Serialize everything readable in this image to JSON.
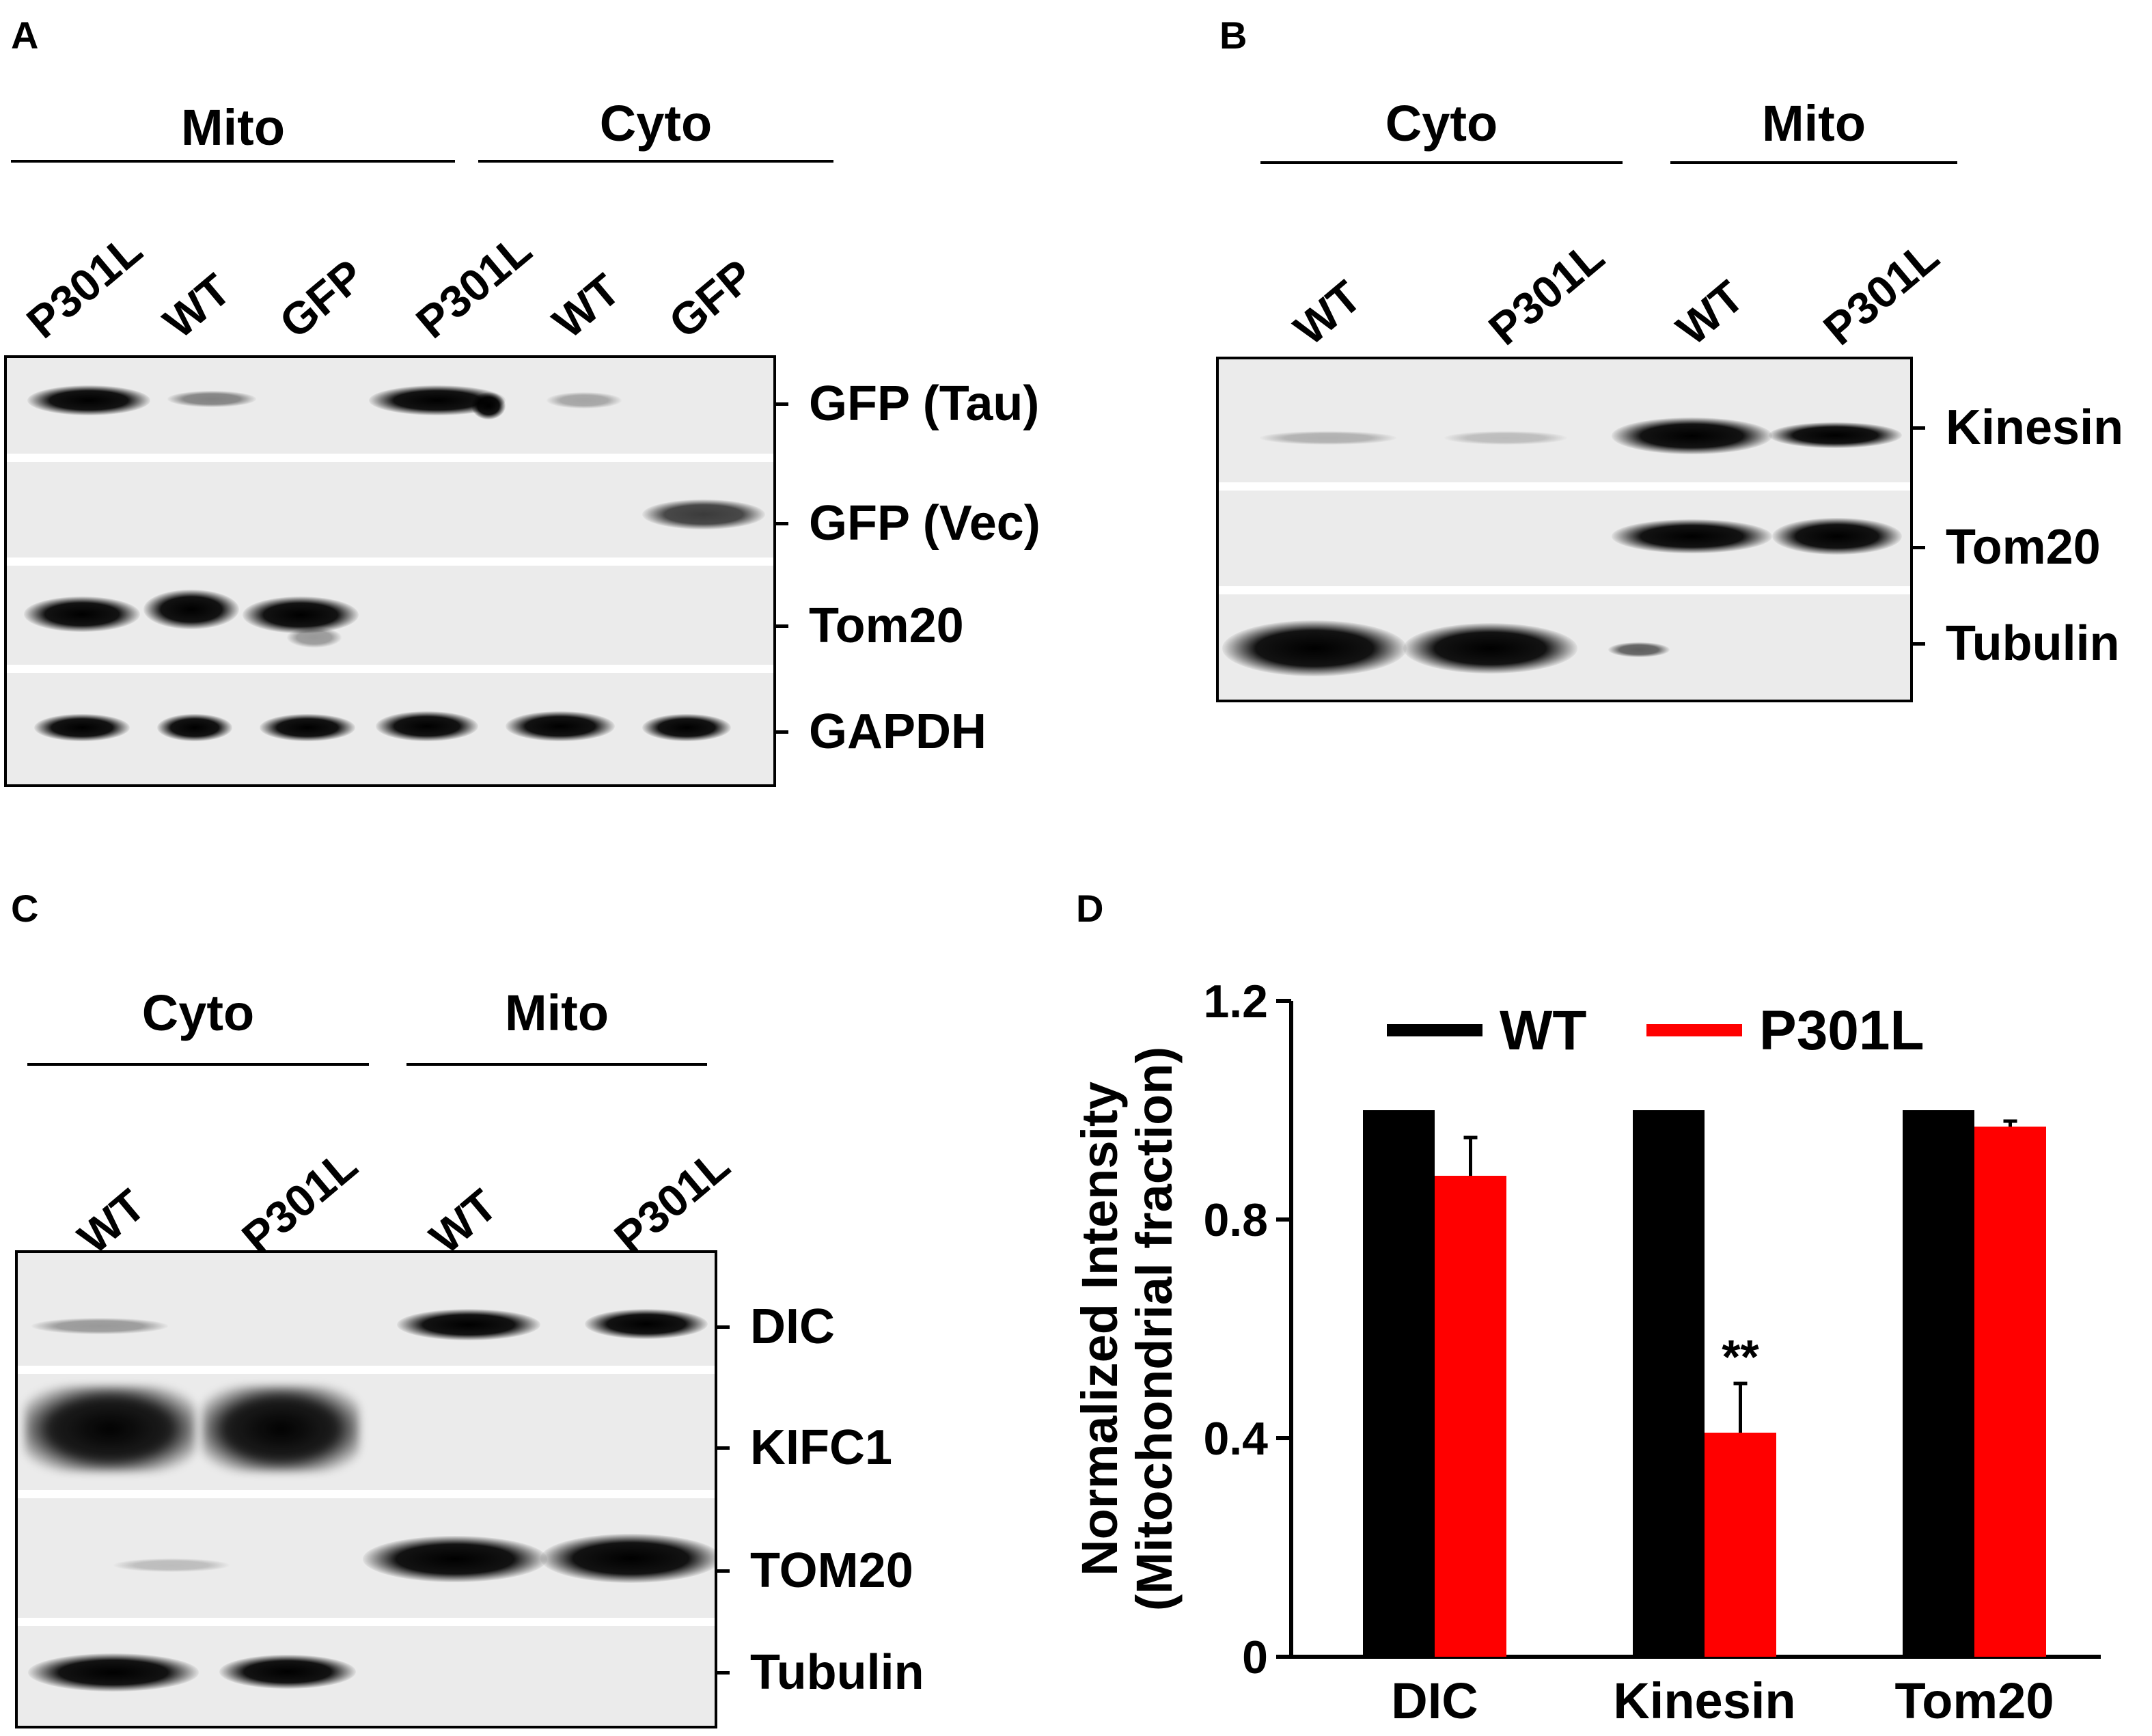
{
  "panels": {
    "A": {
      "letter": "A",
      "groups": [
        "Mito",
        "Cyto"
      ],
      "lanes": [
        "P301L",
        "WT",
        "GFP",
        "P301L",
        "WT",
        "GFP"
      ],
      "markers": [
        "GFP (Tau)",
        "GFP (Vec)",
        "Tom20",
        "GAPDH"
      ]
    },
    "B": {
      "letter": "B",
      "groups": [
        "Cyto",
        "Mito"
      ],
      "lanes": [
        "WT",
        "P301L",
        "WT",
        "P301L"
      ],
      "markers": [
        "Kinesin",
        "Tom20",
        "Tubulin"
      ]
    },
    "C": {
      "letter": "C",
      "groups": [
        "Cyto",
        "Mito"
      ],
      "lanes": [
        "WT",
        "P301L",
        "WT",
        "P301L"
      ],
      "markers": [
        "DIC",
        "KIFC1",
        "TOM20",
        "Tubulin"
      ]
    },
    "D": {
      "letter": "D"
    }
  },
  "chart_data": {
    "type": "bar",
    "categories": [
      "DIC",
      "Kinesin",
      "Tom20"
    ],
    "series": [
      {
        "name": "WT",
        "color": "#000000",
        "values": [
          1.0,
          1.0,
          1.0
        ],
        "errors": [
          0,
          0,
          0
        ]
      },
      {
        "name": "P301L",
        "color": "#ff0000",
        "values": [
          0.88,
          0.41,
          0.97
        ],
        "errors": [
          0.07,
          0.09,
          0.01
        ]
      }
    ],
    "ylabel_line1": "Normalized Intensity",
    "ylabel_line2": "(Mitochondrial fraction)",
    "ylim": [
      0,
      1.2
    ],
    "yticks": [
      0,
      0.4,
      0.8,
      1.2
    ],
    "ytick_labels": [
      "0",
      "0.4",
      "0.8",
      "1.2"
    ],
    "annotation": {
      "text": "**",
      "category": "Kinesin",
      "series": "P301L"
    },
    "legend_position": "top",
    "grid": false
  }
}
